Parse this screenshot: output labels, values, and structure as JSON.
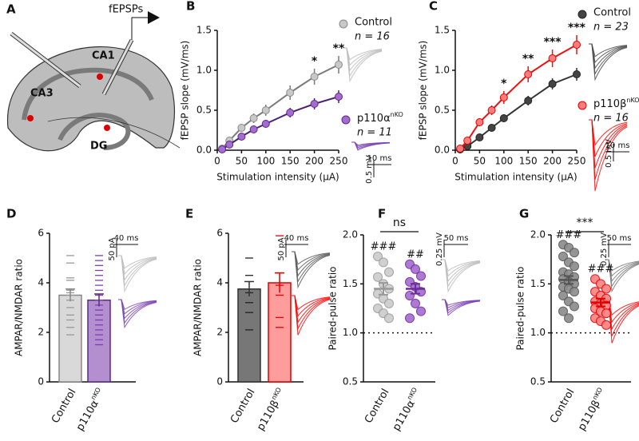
{
  "diagram": {
    "panel": "A",
    "labels": [
      "fEPSPs",
      "CA1",
      "CA3",
      "DG"
    ]
  },
  "chart_data": [
    {
      "type": "line",
      "panel": "B",
      "xlabel": "Stimulation intensity (μA)",
      "ylabel": "fEPSP slope (mV/ms)",
      "x": [
        10,
        25,
        50,
        75,
        100,
        150,
        200,
        250
      ],
      "xlim": [
        0,
        250
      ],
      "xticks": [
        0,
        50,
        100,
        150,
        200,
        250
      ],
      "ylim": [
        0,
        1.5
      ],
      "yticks": [
        {
          "value": 0,
          "label": "0.0"
        },
        0.5,
        {
          "value": 1,
          "label": "1.0"
        },
        1.5
      ],
      "series": [
        {
          "name": "Control",
          "name_sup": null,
          "n_label": "n = 16",
          "color": "#c8c8c8",
          "edge": "#8a8a8a",
          "line": "#7a7a7a",
          "values": [
            0.02,
            0.12,
            0.28,
            0.4,
            0.5,
            0.72,
            0.92,
            1.07
          ],
          "errors": [
            0.01,
            0.03,
            0.05,
            0.06,
            0.07,
            0.09,
            0.1,
            0.11
          ]
        },
        {
          "name": "p110α",
          "name_sup": "nKO",
          "n_label": "n = 11",
          "color": "#a56bd0",
          "edge": "#5b2a86",
          "line": "#4b1f70",
          "values": [
            0.01,
            0.07,
            0.17,
            0.26,
            0.33,
            0.47,
            0.58,
            0.67
          ],
          "errors": [
            0.01,
            0.02,
            0.03,
            0.04,
            0.05,
            0.06,
            0.07,
            0.08
          ]
        }
      ],
      "significance": [
        null,
        null,
        null,
        null,
        null,
        null,
        "*",
        "**"
      ],
      "scalebar_time": "10 ms",
      "scalebar_amp": "0.5 mV"
    },
    {
      "type": "line",
      "panel": "C",
      "xlabel": "Stimulation intensity (μA)",
      "ylabel": "fEPSP slope (mV/ms)",
      "x": [
        10,
        25,
        50,
        75,
        100,
        150,
        200,
        250
      ],
      "xlim": [
        0,
        250
      ],
      "xticks": [
        0,
        50,
        100,
        150,
        200,
        250
      ],
      "ylim": [
        0,
        1.5
      ],
      "yticks": [
        {
          "value": 0,
          "label": "0.0"
        },
        0.5,
        {
          "value": 1,
          "label": "1.0"
        },
        1.5
      ],
      "series": [
        {
          "name": "Control",
          "name_sup": null,
          "n_label": "n = 23",
          "color": "#444444",
          "edge": "#222222",
          "line": "#333333",
          "values": [
            0.01,
            0.05,
            0.16,
            0.28,
            0.4,
            0.62,
            0.83,
            0.95
          ],
          "errors": [
            0.01,
            0.02,
            0.03,
            0.04,
            0.05,
            0.06,
            0.07,
            0.08
          ]
        },
        {
          "name": "p110β",
          "name_sup": "nKO",
          "n_label": "n = 16",
          "color": "#ff7a7a",
          "edge": "#e00000",
          "line": "#ee1111",
          "values": [
            0.02,
            0.12,
            0.35,
            0.5,
            0.66,
            0.95,
            1.15,
            1.32
          ],
          "errors": [
            0.01,
            0.03,
            0.05,
            0.06,
            0.08,
            0.1,
            0.11,
            0.12
          ]
        }
      ],
      "significance": [
        null,
        null,
        null,
        null,
        "*",
        "**",
        "***",
        "***"
      ],
      "scalebar_time": "10 ms",
      "scalebar_amp": "0.5 mV"
    },
    {
      "type": "bar",
      "panel": "D",
      "ylabel": "AMPAR/NMDAR ratio",
      "ylim": [
        0,
        6
      ],
      "yticks": [
        0,
        2,
        4,
        6
      ],
      "categories": [
        "Control",
        "p110α"
      ],
      "category_sup": [
        null,
        "nKO"
      ],
      "values": [
        3.5,
        3.3
      ],
      "errors": [
        0.25,
        0.25
      ],
      "colors": [
        "#d9d9d9",
        "#b38fd0"
      ],
      "edges": [
        "#888888",
        "#5b2a86"
      ],
      "point_colors": [
        "#999999",
        "#7b3fb0"
      ],
      "points": [
        [
          5.1,
          4.8,
          4.2,
          4.1,
          3.7,
          3.6,
          3.5,
          3.3,
          3.0,
          2.7,
          2.5,
          2.2,
          1.9
        ],
        [
          5.1,
          4.9,
          4.7,
          4.5,
          4.3,
          4.1,
          3.9,
          3.7,
          3.5,
          3.3,
          3.1,
          2.9,
          2.7,
          2.5,
          2.3,
          2.1,
          1.9,
          1.7,
          1.5
        ]
      ],
      "scalebar_time": "40 ms",
      "scalebar_amp": "50 pA"
    },
    {
      "type": "bar",
      "panel": "E",
      "ylabel": "AMPAR/NMDAR ratio",
      "ylim": [
        0,
        6
      ],
      "yticks": [
        0,
        2,
        4,
        6
      ],
      "categories": [
        "Control",
        "p110β"
      ],
      "category_sup": [
        null,
        "nKO"
      ],
      "values": [
        3.75,
        4.0
      ],
      "errors": [
        0.3,
        0.4
      ],
      "colors": [
        "#777777",
        "#ff9c9c"
      ],
      "edges": [
        "#333333",
        "#e00000"
      ],
      "point_colors": [
        "#222222",
        "#e00000"
      ],
      "points": [
        [
          5.0,
          4.3,
          3.6,
          3.2,
          2.8,
          2.1
        ],
        [
          5.9,
          4.4,
          3.9,
          3.5,
          2.6,
          2.2
        ]
      ],
      "scalebar_time": "40 ms",
      "scalebar_amp": "50 pA"
    },
    {
      "type": "dot",
      "panel": "F",
      "ylabel": "Paired-pulse ratio",
      "ylim": [
        0.5,
        2.0
      ],
      "yticks": [
        0.5,
        {
          "value": 1,
          "label": "1.0"
        },
        1.5,
        {
          "value": 2,
          "label": "2.0"
        }
      ],
      "refline": 1,
      "categories": [
        "Control",
        "p110α"
      ],
      "category_sup": [
        null,
        "nKO"
      ],
      "values": [
        1.45,
        1.45
      ],
      "errors": [
        0.06,
        0.05
      ],
      "colors": [
        "#cccccc",
        "#a56bd0"
      ],
      "edges": [
        "#999999",
        "#6a2c9a"
      ],
      "points": [
        [
          1.78,
          1.72,
          1.62,
          1.57,
          1.5,
          1.45,
          1.4,
          1.35,
          1.3,
          1.25,
          1.2,
          1.15
        ],
        [
          1.7,
          1.65,
          1.58,
          1.52,
          1.47,
          1.42,
          1.38,
          1.3,
          1.22,
          1.15
        ]
      ],
      "significance": [
        "###",
        "##"
      ],
      "comparison": "ns",
      "scalebar_time": "50 ms",
      "scalebar_amp": "0.25 mV"
    },
    {
      "type": "dot",
      "panel": "G",
      "ylabel": "Paired-pulse ratio",
      "ylim": [
        0.5,
        2.0
      ],
      "yticks": [
        0.5,
        {
          "value": 1,
          "label": "1.0"
        },
        1.5,
        {
          "value": 2,
          "label": "2.0"
        }
      ],
      "refline": 1,
      "categories": [
        "Control",
        "p110β"
      ],
      "category_sup": [
        null,
        "nKO"
      ],
      "values": [
        1.54,
        1.31
      ],
      "errors": [
        0.04,
        0.04
      ],
      "colors": [
        "#8a8a8a",
        "#ff8080"
      ],
      "edges": [
        "#555555",
        "#e00000"
      ],
      "points": [
        [
          1.9,
          1.87,
          1.82,
          1.78,
          1.72,
          1.68,
          1.62,
          1.6,
          1.57,
          1.55,
          1.52,
          1.5,
          1.47,
          1.45,
          1.42,
          1.38,
          1.32,
          1.27,
          1.22,
          1.15
        ],
        [
          1.55,
          1.5,
          1.45,
          1.42,
          1.38,
          1.35,
          1.32,
          1.3,
          1.28,
          1.25,
          1.22,
          1.2,
          1.15,
          1.12,
          1.08
        ]
      ],
      "significance": [
        "###",
        "###"
      ],
      "comparison": "***",
      "scalebar_time": "50 ms",
      "scalebar_amp": "0.25 mV"
    }
  ]
}
